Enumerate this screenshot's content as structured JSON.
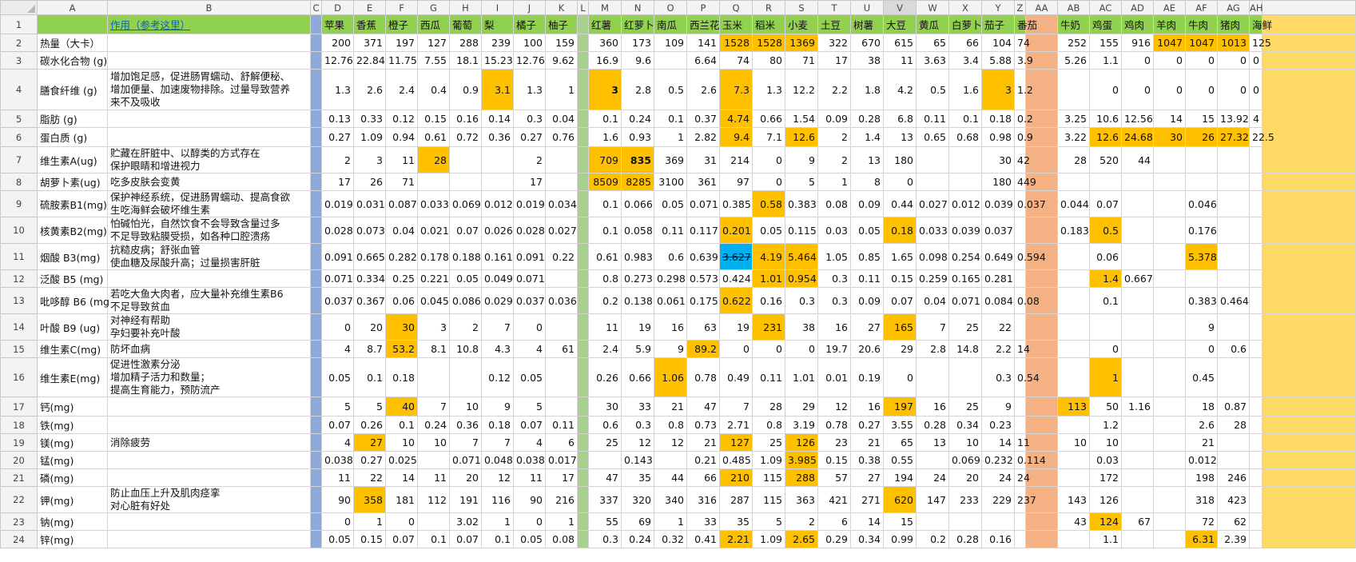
{
  "sheet": {
    "column_headers": [
      "A",
      "B",
      "C",
      "D",
      "E",
      "F",
      "G",
      "H",
      "I",
      "J",
      "K",
      "L",
      "M",
      "N",
      "O",
      "P",
      "Q",
      "R",
      "S",
      "T",
      "U",
      "V",
      "W",
      "X",
      "Y",
      "Z",
      "AA",
      "AB",
      "AC",
      "AD",
      "AE",
      "AF",
      "AG",
      "AH",
      ""
    ],
    "row1": {
      "A": "",
      "B": "作用（参考这里）",
      "foods": [
        "苹果",
        "香蕉",
        "橙子",
        "西瓜",
        "葡萄",
        "梨",
        "橘子",
        "柚子",
        "",
        "红薯",
        "红萝卜",
        "南瓜",
        "西兰花",
        "玉米",
        "稻米",
        "小麦",
        "土豆",
        "树薯",
        "大豆",
        "黄瓜",
        "白萝卜",
        "茄子",
        "番茄",
        "",
        "牛奶",
        "鸡蛋",
        "鸡肉",
        "羊肉",
        "牛肉",
        "猪肉",
        "海鲜"
      ]
    },
    "rows": [
      {
        "num": "2",
        "label": "热量（大卡）",
        "note": "",
        "vals": [
          "200",
          "371",
          "197",
          "127",
          "288",
          "239",
          "100",
          "159",
          "",
          "360",
          "173",
          "109",
          "141",
          "1528",
          "1528",
          "1369",
          "322",
          "670",
          "615",
          "65",
          "66",
          "104",
          "74",
          "",
          "252",
          "155",
          "916",
          "1047",
          "1047",
          "1013",
          "125"
        ]
      },
      {
        "num": "3",
        "label": "碳水化合物 (g)",
        "note": "",
        "vals": [
          "12.76",
          "22.84",
          "11.75",
          "7.55",
          "18.1",
          "15.23",
          "12.76",
          "9.62",
          "",
          "16.9",
          "9.6",
          "",
          "6.64",
          "74",
          "80",
          "71",
          "17",
          "38",
          "11",
          "3.63",
          "3.4",
          "5.88",
          "3.9",
          "",
          "5.26",
          "1.1",
          "0",
          "0",
          "0",
          "0",
          "0"
        ]
      },
      {
        "num": "4",
        "label": "膳食纤维 (g)",
        "note": "增加饱足感，促进肠胃蠕动、舒解便秘、\n增加便量、加速废物排除。过量导致营养\n来不及吸收",
        "vals": [
          "1.3",
          "2.6",
          "2.4",
          "0.4",
          "0.9",
          "3.1",
          "1.3",
          "1",
          "",
          "3",
          "2.8",
          "0.5",
          "2.6",
          "7.3",
          "1.3",
          "12.2",
          "2.2",
          "1.8",
          "4.2",
          "0.5",
          "1.6",
          "3",
          "1.2",
          "",
          "",
          "0",
          "0",
          "0",
          "0",
          "0",
          "0"
        ]
      },
      {
        "num": "5",
        "label": "脂肪 (g)",
        "note": "",
        "vals": [
          "0.13",
          "0.33",
          "0.12",
          "0.15",
          "0.16",
          "0.14",
          "0.3",
          "0.04",
          "",
          "0.1",
          "0.24",
          "0.1",
          "0.37",
          "4.74",
          "0.66",
          "1.54",
          "0.09",
          "0.28",
          "6.8",
          "0.11",
          "0.1",
          "0.18",
          "0.2",
          "",
          "3.25",
          "10.6",
          "12.56",
          "14",
          "15",
          "13.92",
          "4"
        ]
      },
      {
        "num": "6",
        "label": "蛋白质 (g)",
        "note": "",
        "vals": [
          "0.27",
          "1.09",
          "0.94",
          "0.61",
          "0.72",
          "0.36",
          "0.27",
          "0.76",
          "",
          "1.6",
          "0.93",
          "1",
          "2.82",
          "9.4",
          "7.1",
          "12.6",
          "2",
          "1.4",
          "13",
          "0.65",
          "0.68",
          "0.98",
          "0.9",
          "",
          "3.22",
          "12.6",
          "24.68",
          "30",
          "26",
          "27.32",
          "22.5"
        ]
      },
      {
        "num": "7",
        "label": "维生素A(ug)",
        "note": "贮藏在肝脏中、以醇类的方式存在\n保护眼睛和增进视力",
        "vals": [
          "2",
          "3",
          "11",
          "28",
          "",
          "",
          "2",
          "",
          "",
          "709",
          "835",
          "369",
          "31",
          "214",
          "0",
          "9",
          "2",
          "13",
          "180",
          "",
          "",
          "30",
          "42",
          "",
          "28",
          "520",
          "44",
          "",
          "",
          "",
          ""
        ]
      },
      {
        "num": "8",
        "label": "胡萝卜素(ug)",
        "note": "吃多皮肤会变黄",
        "vals": [
          "17",
          "26",
          "71",
          "",
          "",
          "",
          "17",
          "",
          "",
          "8509",
          "8285",
          "3100",
          "361",
          "97",
          "0",
          "5",
          "1",
          "8",
          "0",
          "",
          "",
          "180",
          "449",
          "",
          "",
          "",
          "",
          "",
          "",
          "",
          ""
        ]
      },
      {
        "num": "9",
        "label": "硫胺素B1(mg)",
        "note": "保护神经系统，促进肠胃蠕动、提高食欲\n生吃海鲜会破坏维生素",
        "vals": [
          "0.019",
          "0.031",
          "0.087",
          "0.033",
          "0.069",
          "0.012",
          "0.019",
          "0.034",
          "",
          "0.1",
          "0.066",
          "0.05",
          "0.071",
          "0.385",
          "0.58",
          "0.383",
          "0.08",
          "0.09",
          "0.44",
          "0.027",
          "0.012",
          "0.039",
          "0.037",
          "",
          "0.044",
          "0.07",
          "",
          "",
          "0.046",
          "",
          ""
        ]
      },
      {
        "num": "10",
        "label": "核黄素B2(mg)",
        "note": "怕碱怕光，自然饮食不会导致含量过多\n不足导致粘膜受损，如各种口腔溃疡",
        "vals": [
          "0.028",
          "0.073",
          "0.04",
          "0.021",
          "0.07",
          "0.026",
          "0.028",
          "0.027",
          "",
          "0.1",
          "0.058",
          "0.11",
          "0.117",
          "0.201",
          "0.05",
          "0.115",
          "0.03",
          "0.05",
          "0.18",
          "0.033",
          "0.039",
          "0.037",
          "",
          "",
          "0.183",
          "0.5",
          "",
          "",
          "0.176",
          "",
          ""
        ]
      },
      {
        "num": "11",
        "label": "烟酸 B3(mg)",
        "note": "抗糙皮病；舒张血管\n使血糖及尿酸升高；过量损害肝脏",
        "vals": [
          "0.091",
          "0.665",
          "0.282",
          "0.178",
          "0.188",
          "0.161",
          "0.091",
          "0.22",
          "",
          "0.61",
          "0.983",
          "0.6",
          "0.639",
          "3.627",
          "4.19",
          "5.464",
          "1.05",
          "0.85",
          "1.65",
          "0.098",
          "0.254",
          "0.649",
          "0.594",
          "",
          "",
          "0.06",
          "",
          "",
          "5.378",
          "",
          ""
        ]
      },
      {
        "num": "12",
        "label": "泛酸 B5 (mg)",
        "note": "",
        "vals": [
          "0.071",
          "0.334",
          "0.25",
          "0.221",
          "0.05",
          "0.049",
          "0.071",
          "",
          "",
          "0.8",
          "0.273",
          "0.298",
          "0.573",
          "0.424",
          "1.01",
          "0.954",
          "0.3",
          "0.11",
          "0.15",
          "0.259",
          "0.165",
          "0.281",
          "",
          "",
          "",
          "1.4",
          "0.667",
          "",
          "",
          "",
          ""
        ]
      },
      {
        "num": "13",
        "label": "吡哆醇 B6 (mg",
        "note": "若吃大鱼大肉者，应大量补充维生素B6\n不足导致贫血",
        "vals": [
          "0.037",
          "0.367",
          "0.06",
          "0.045",
          "0.086",
          "0.029",
          "0.037",
          "0.036",
          "",
          "0.2",
          "0.138",
          "0.061",
          "0.175",
          "0.622",
          "0.16",
          "0.3",
          "0.3",
          "0.09",
          "0.07",
          "0.04",
          "0.071",
          "0.084",
          "0.08",
          "",
          "",
          "0.1",
          "",
          "",
          "0.383",
          "0.464",
          ""
        ]
      },
      {
        "num": "14",
        "label": "叶酸 B9 (ug)",
        "note": "对神经有帮助\n孕妇要补充叶酸",
        "vals": [
          "0",
          "20",
          "30",
          "3",
          "2",
          "7",
          "0",
          "",
          "",
          "11",
          "19",
          "16",
          "63",
          "19",
          "231",
          "38",
          "16",
          "27",
          "165",
          "7",
          "25",
          "22",
          "",
          "",
          "",
          "",
          "",
          "",
          "9",
          "",
          ""
        ]
      },
      {
        "num": "15",
        "label": "维生素C(mg)",
        "note": "防坏血病",
        "vals": [
          "4",
          "8.7",
          "53.2",
          "8.1",
          "10.8",
          "4.3",
          "4",
          "61",
          "",
          "2.4",
          "5.9",
          "9",
          "89.2",
          "0",
          "0",
          "0",
          "19.7",
          "20.6",
          "29",
          "2.8",
          "14.8",
          "2.2",
          "14",
          "",
          "",
          "0",
          "",
          "",
          "0",
          "0.6",
          ""
        ]
      },
      {
        "num": "16",
        "label": "维生素E(mg)",
        "note": "促进性激素分泌\n增加精子活力和数量；\n提高生育能力，预防流产",
        "vals": [
          "0.05",
          "0.1",
          "0.18",
          "",
          "",
          "0.12",
          "0.05",
          "",
          "",
          "0.26",
          "0.66",
          "1.06",
          "0.78",
          "0.49",
          "0.11",
          "1.01",
          "0.01",
          "0.19",
          "0",
          "",
          "",
          "0.3",
          "0.54",
          "",
          "",
          "1",
          "",
          "",
          "0.45",
          "",
          ""
        ]
      },
      {
        "num": "17",
        "label": "钙(mg)",
        "note": "",
        "vals": [
          "5",
          "5",
          "40",
          "7",
          "10",
          "9",
          "5",
          "",
          "",
          "30",
          "33",
          "21",
          "47",
          "7",
          "28",
          "29",
          "12",
          "16",
          "197",
          "16",
          "25",
          "9",
          "",
          "",
          "113",
          "50",
          "1.16",
          "",
          "18",
          "0.87",
          ""
        ]
      },
      {
        "num": "18",
        "label": "铁(mg)",
        "note": "",
        "vals": [
          "0.07",
          "0.26",
          "0.1",
          "0.24",
          "0.36",
          "0.18",
          "0.07",
          "0.11",
          "",
          "0.6",
          "0.3",
          "0.8",
          "0.73",
          "2.71",
          "0.8",
          "3.19",
          "0.78",
          "0.27",
          "3.55",
          "0.28",
          "0.34",
          "0.23",
          "",
          "",
          "",
          "1.2",
          "",
          "",
          "2.6",
          "28",
          ""
        ]
      },
      {
        "num": "19",
        "label": "镁(mg)",
        "note": "消除疲劳",
        "vals": [
          "4",
          "27",
          "10",
          "10",
          "7",
          "7",
          "4",
          "6",
          "",
          "25",
          "12",
          "12",
          "21",
          "127",
          "25",
          "126",
          "23",
          "21",
          "65",
          "13",
          "10",
          "14",
          "11",
          "",
          "10",
          "10",
          "",
          "",
          "21",
          "",
          ""
        ]
      },
      {
        "num": "20",
        "label": "锰(mg)",
        "note": "",
        "vals": [
          "0.038",
          "0.27",
          "0.025",
          "",
          "0.071",
          "0.048",
          "0.038",
          "0.017",
          "",
          "",
          "0.143",
          "",
          "0.21",
          "0.485",
          "1.09",
          "3.985",
          "0.15",
          "0.38",
          "0.55",
          "",
          "0.069",
          "0.232",
          "0.114",
          "",
          "",
          "0.03",
          "",
          "",
          "0.012",
          "",
          ""
        ]
      },
      {
        "num": "21",
        "label": "磷(mg)",
        "note": "",
        "vals": [
          "11",
          "22",
          "14",
          "11",
          "20",
          "12",
          "11",
          "17",
          "",
          "47",
          "35",
          "44",
          "66",
          "210",
          "115",
          "288",
          "57",
          "27",
          "194",
          "24",
          "20",
          "24",
          "24",
          "",
          "",
          "172",
          "",
          "",
          "198",
          "246",
          ""
        ]
      },
      {
        "num": "22",
        "label": "钾(mg)",
        "note": "防止血压上升及肌肉痉挛\n对心脏有好处",
        "vals": [
          "90",
          "358",
          "181",
          "112",
          "191",
          "116",
          "90",
          "216",
          "",
          "337",
          "320",
          "340",
          "316",
          "287",
          "115",
          "363",
          "421",
          "271",
          "620",
          "147",
          "233",
          "229",
          "237",
          "",
          "143",
          "126",
          "",
          "",
          "318",
          "423",
          ""
        ]
      },
      {
        "num": "23",
        "label": "钠(mg)",
        "note": "",
        "vals": [
          "0",
          "1",
          "0",
          "",
          "3.02",
          "1",
          "0",
          "1",
          "",
          "55",
          "69",
          "1",
          "33",
          "35",
          "5",
          "2",
          "6",
          "14",
          "15",
          "",
          "",
          "",
          "",
          "",
          "43",
          "124",
          "67",
          "",
          "72",
          "62",
          ""
        ]
      },
      {
        "num": "24",
        "label": "锌(mg)",
        "note": "",
        "vals": [
          "0.05",
          "0.15",
          "0.07",
          "0.1",
          "0.07",
          "0.1",
          "0.05",
          "0.08",
          "",
          "0.3",
          "0.24",
          "0.32",
          "0.41",
          "2.21",
          "1.09",
          "2.65",
          "0.29",
          "0.34",
          "0.99",
          "0.2",
          "0.28",
          "0.16",
          "",
          "",
          "",
          "1.1",
          "",
          "",
          "6.31",
          "2.39",
          ""
        ]
      }
    ]
  },
  "colors": {
    "highlight": "#ffc000",
    "blue_highlight": "#00b0f0",
    "food_header": "#92d050",
    "sep_c": "#8eaadb",
    "sep_l": "#a9d08e",
    "sep_aa": "#f4b183",
    "sep_ai": "#ffd966"
  }
}
